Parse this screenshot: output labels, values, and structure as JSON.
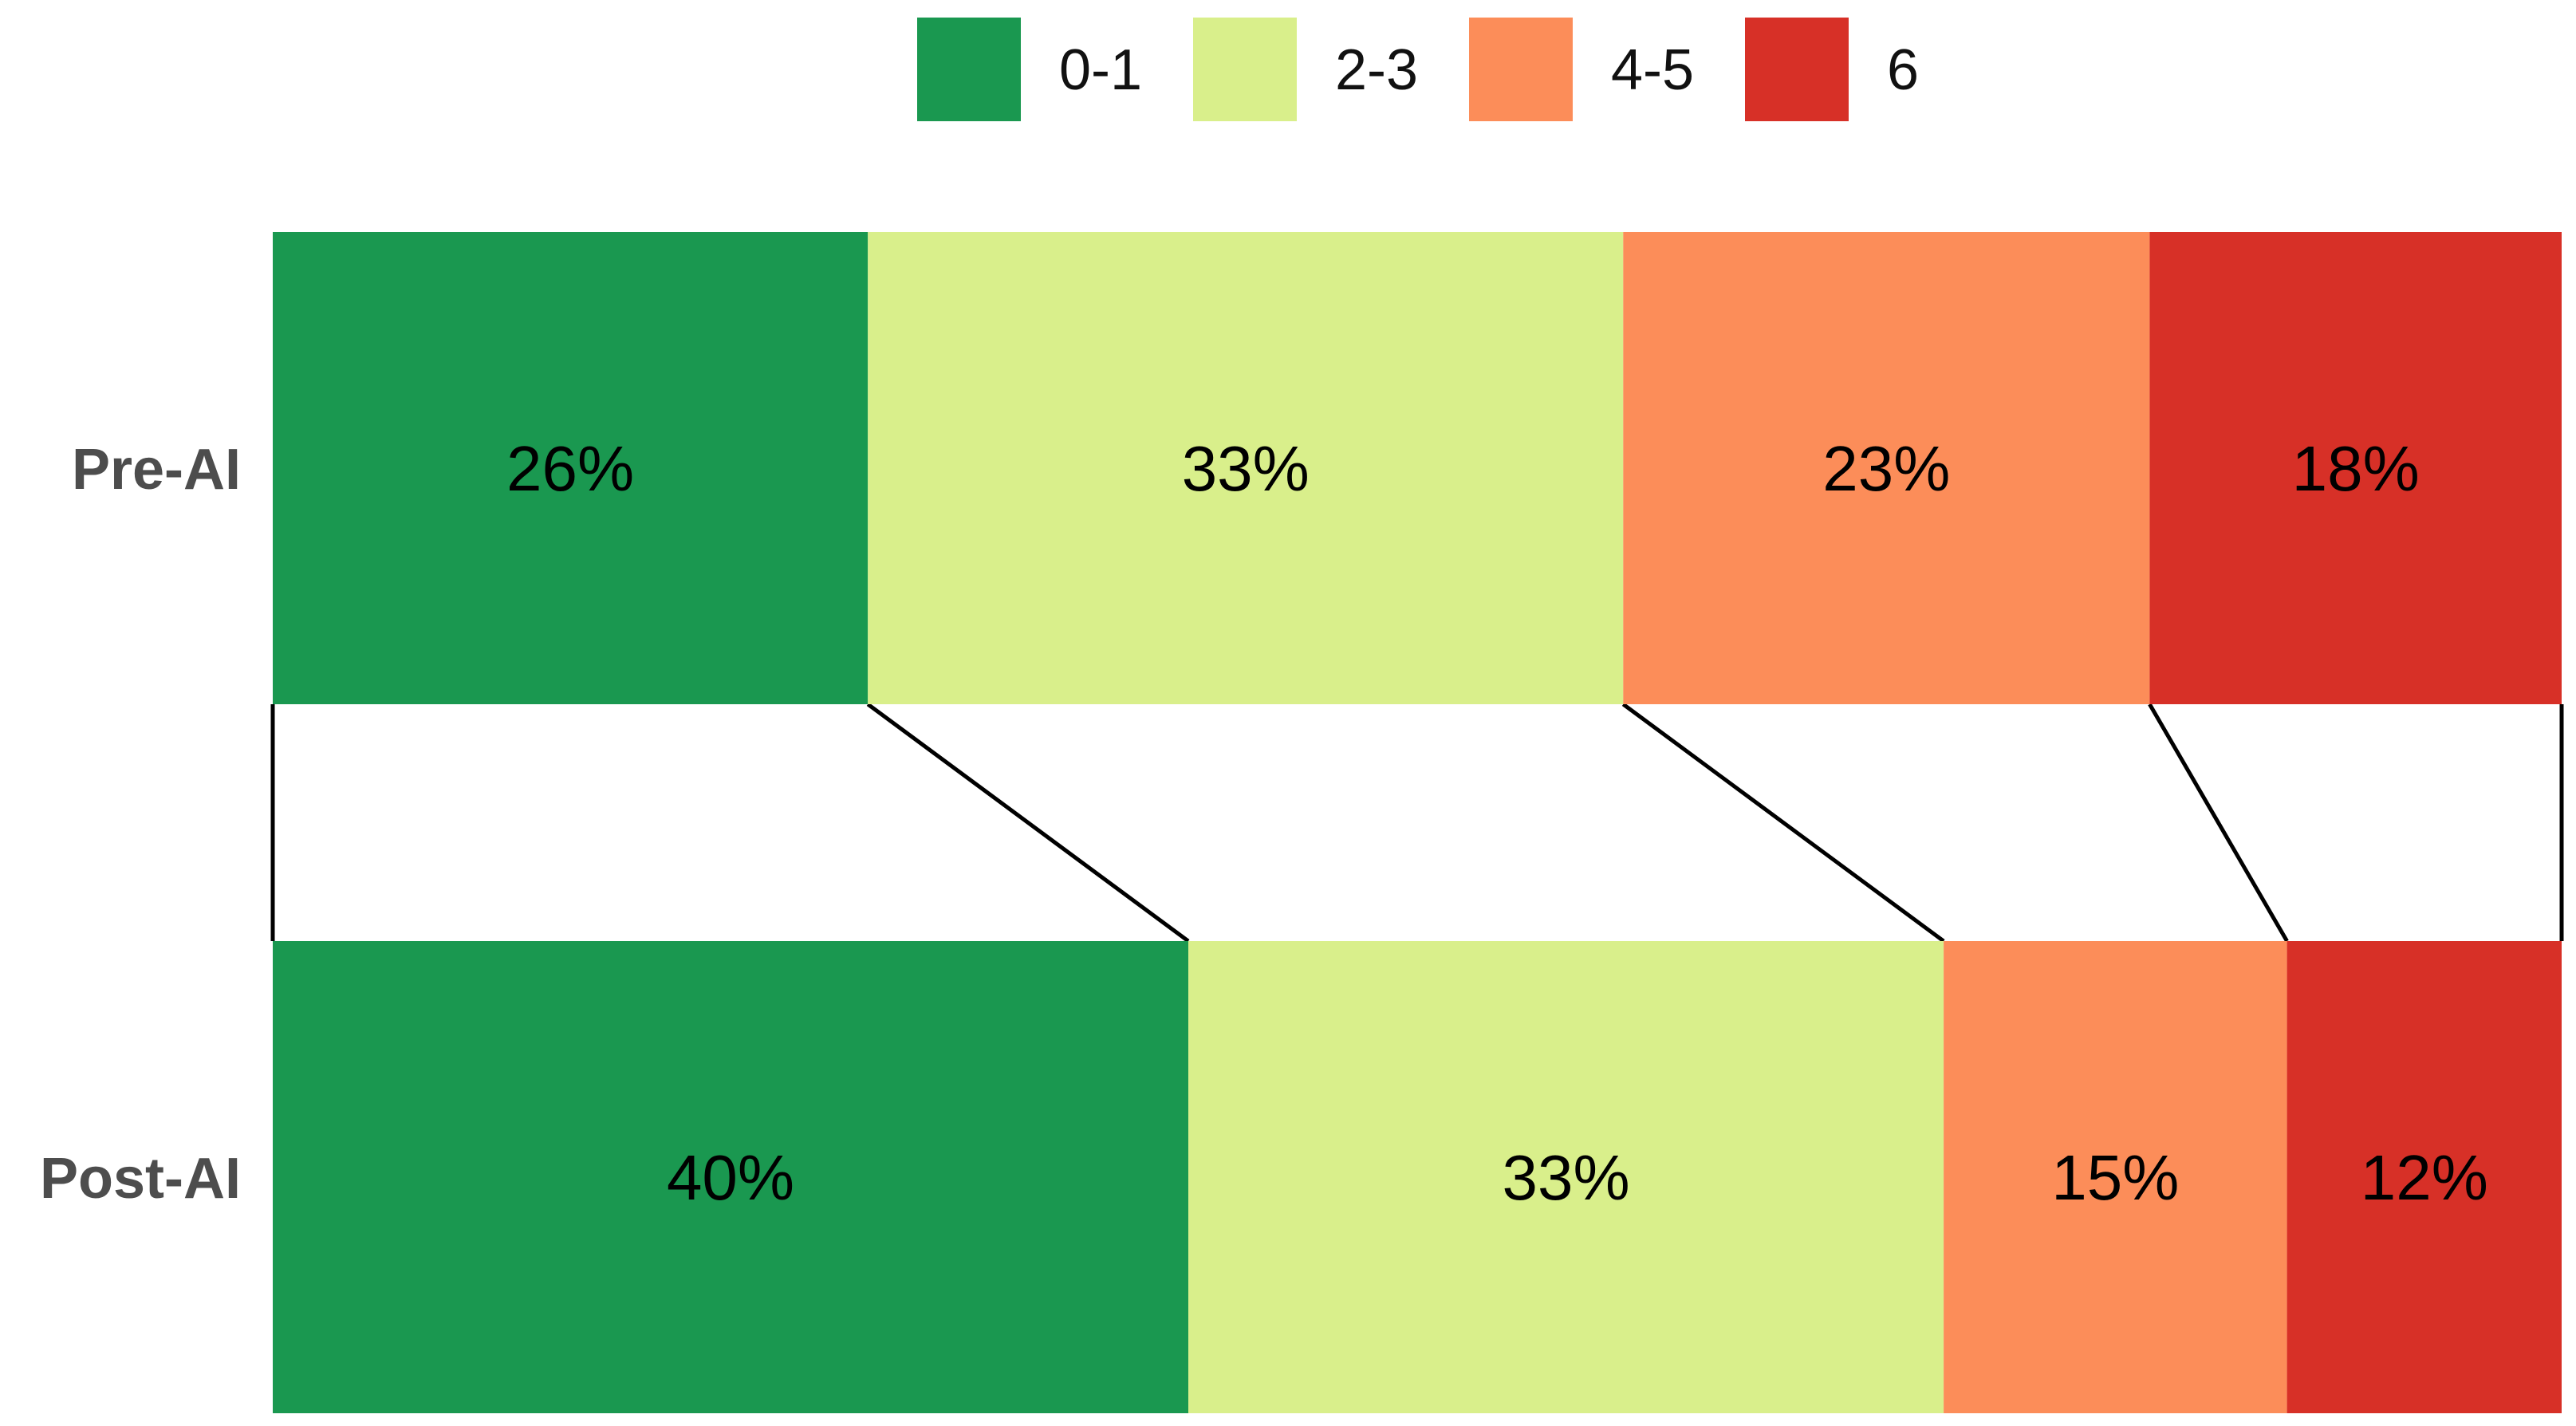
{
  "chart_data": {
    "type": "bar",
    "orientation": "horizontal",
    "stacked": true,
    "normalized": true,
    "categories": [
      "Pre-AI",
      "Post-AI"
    ],
    "series": [
      {
        "name": "0-1",
        "color": "#1a9850",
        "values": [
          26,
          40
        ],
        "labels": [
          "26%",
          "40%"
        ]
      },
      {
        "name": "2-3",
        "color": "#d9ef8b",
        "values": [
          33,
          33
        ],
        "labels": [
          "33%",
          "33%"
        ]
      },
      {
        "name": "4-5",
        "color": "#fc8d59",
        "values": [
          23,
          15
        ],
        "labels": [
          "23%",
          "15%"
        ]
      },
      {
        "name": "6",
        "color": "#d73027",
        "values": [
          18,
          12
        ],
        "labels": [
          "18%",
          "12%"
        ]
      }
    ],
    "xlim": [
      0,
      100
    ],
    "legend_position": "top-center",
    "connectors": true,
    "grid": false,
    "title": "",
    "xlabel": "",
    "ylabel": ""
  }
}
